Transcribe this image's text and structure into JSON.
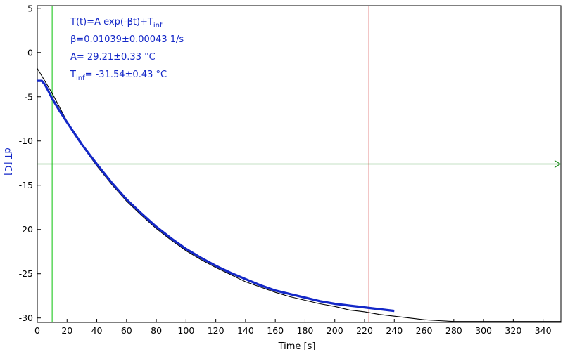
{
  "chart_data": {
    "type": "line",
    "title": "",
    "xlabel": "Time [s]",
    "ylabel": "dT [C]",
    "xlim": [
      0,
      352
    ],
    "ylim": [
      -30.5,
      5.3
    ],
    "xticks": [
      0,
      20,
      40,
      60,
      80,
      100,
      120,
      140,
      160,
      180,
      200,
      220,
      240,
      260,
      280,
      300,
      320,
      340
    ],
    "yticks": [
      5,
      0,
      -5,
      -10,
      -15,
      -20,
      -25,
      -30
    ],
    "grid": false,
    "fit_params": {
      "beta": 0.01039,
      "A": 29.21,
      "T_inf": -31.54
    },
    "annotation": {
      "line1_main": "T(t)=A exp(-βt)+T",
      "line1_sub": "inf",
      "line2": "β=0.01039±0.00043 1/s",
      "line3": "A= 29.21±0.33 °C",
      "line4_main": "T",
      "line4_sub": "inf",
      "line4_rest": "= -31.54±0.43 °C"
    },
    "cursors": {
      "green_vertical_x": 10,
      "red_vertical_x": 223,
      "green_horizontal_y": -12.6
    },
    "series": [
      {
        "kind": "fit",
        "color": "#000000",
        "x": [
          0,
          10,
          20,
          30,
          40,
          50,
          60,
          70,
          80,
          90,
          100,
          110,
          120,
          130,
          140,
          150,
          160,
          170,
          180,
          190,
          200,
          210,
          220,
          230,
          240,
          250,
          260,
          270,
          280,
          300,
          320,
          340,
          352
        ],
        "values": [
          -1.8,
          -4.6,
          -7.8,
          -10.5,
          -12.8,
          -14.9,
          -16.8,
          -18.4,
          -19.9,
          -21.2,
          -22.4,
          -23.4,
          -24.3,
          -25.1,
          -25.9,
          -26.5,
          -27.1,
          -27.6,
          -28.0,
          -28.4,
          -28.7,
          -29.1,
          -29.3,
          -29.6,
          -29.8,
          -30.0,
          -30.2,
          -30.3,
          -30.4,
          -30.4,
          -30.4,
          -30.4,
          -30.4
        ]
      },
      {
        "kind": "data",
        "color": "#1428c8",
        "x": [
          0,
          3,
          5,
          7,
          10,
          15,
          20,
          30,
          40,
          50,
          60,
          70,
          80,
          90,
          100,
          110,
          120,
          130,
          140,
          150,
          160,
          170,
          180,
          190,
          200,
          210,
          220,
          230,
          240
        ],
        "values": [
          -3.2,
          -3.2,
          -3.6,
          -4.2,
          -5.2,
          -6.6,
          -7.9,
          -10.4,
          -12.6,
          -14.7,
          -16.6,
          -18.2,
          -19.7,
          -21.0,
          -22.2,
          -23.2,
          -24.1,
          -24.9,
          -25.6,
          -26.3,
          -26.9,
          -27.3,
          -27.7,
          -28.1,
          -28.4,
          -28.6,
          -28.8,
          -29.0,
          -29.2
        ]
      }
    ]
  }
}
